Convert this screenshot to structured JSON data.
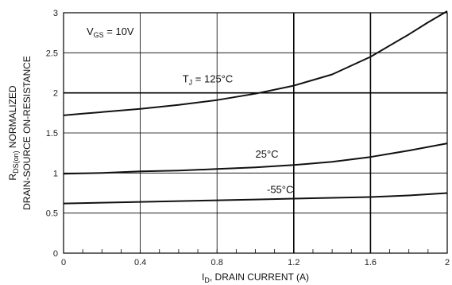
{
  "chart_data": {
    "type": "line",
    "xlabel_parts": [
      "I",
      "D",
      ", DRAIN CURRENT (A)"
    ],
    "ylabel_line1_parts": [
      "R",
      "DS(on)",
      " NORMALIZED"
    ],
    "ylabel_line2": "DRAIN-SOURCE ON-RESISTANCE",
    "xlim": [
      0,
      2
    ],
    "ylim": [
      0,
      3
    ],
    "x_ticks": [
      0,
      0.4,
      0.8,
      1.2,
      1.6,
      2
    ],
    "x_tick_labels": [
      "0",
      "0.4",
      "0.8",
      "1.2",
      "1.6",
      "2"
    ],
    "y_ticks": [
      0,
      0.5,
      1,
      1.5,
      2,
      2.5,
      3
    ],
    "y_tick_labels": [
      "0",
      "0.5",
      "1",
      "1.5",
      "2",
      "2.5",
      "3"
    ],
    "grid": "major lines at x = 0.4, 0.8, 1.2, 1.6, 2 and y = 0.5, 1, 1.5, 2, 2.5, 3; bold at x = 1.2, 1.6 and y = 2",
    "annotations": {
      "vgs_parts": [
        "V",
        "GS",
        " = 10V"
      ],
      "tj_parts": [
        "T",
        "J",
        " = 125°C"
      ],
      "t25": "25°C",
      "tm55": "-55°C"
    },
    "series": [
      {
        "name": "T_J = 125°C",
        "x": [
          0,
          0.1,
          0.2,
          0.4,
          0.6,
          0.8,
          1.0,
          1.2,
          1.4,
          1.6,
          1.8,
          1.9,
          2.0
        ],
        "y": [
          1.72,
          1.74,
          1.76,
          1.8,
          1.85,
          1.91,
          1.99,
          2.09,
          2.23,
          2.45,
          2.73,
          2.88,
          3.03
        ]
      },
      {
        "name": "25°C",
        "x": [
          0,
          0.2,
          0.4,
          0.6,
          0.8,
          1.0,
          1.2,
          1.4,
          1.6,
          1.8,
          2.0
        ],
        "y": [
          0.99,
          1.0,
          1.02,
          1.03,
          1.05,
          1.07,
          1.1,
          1.14,
          1.2,
          1.28,
          1.37
        ]
      },
      {
        "name": "-55°C",
        "x": [
          0,
          0.2,
          0.4,
          0.6,
          0.8,
          1.0,
          1.2,
          1.4,
          1.6,
          1.8,
          2.0
        ],
        "y": [
          0.62,
          0.63,
          0.64,
          0.65,
          0.66,
          0.67,
          0.68,
          0.69,
          0.7,
          0.72,
          0.75
        ]
      }
    ]
  }
}
